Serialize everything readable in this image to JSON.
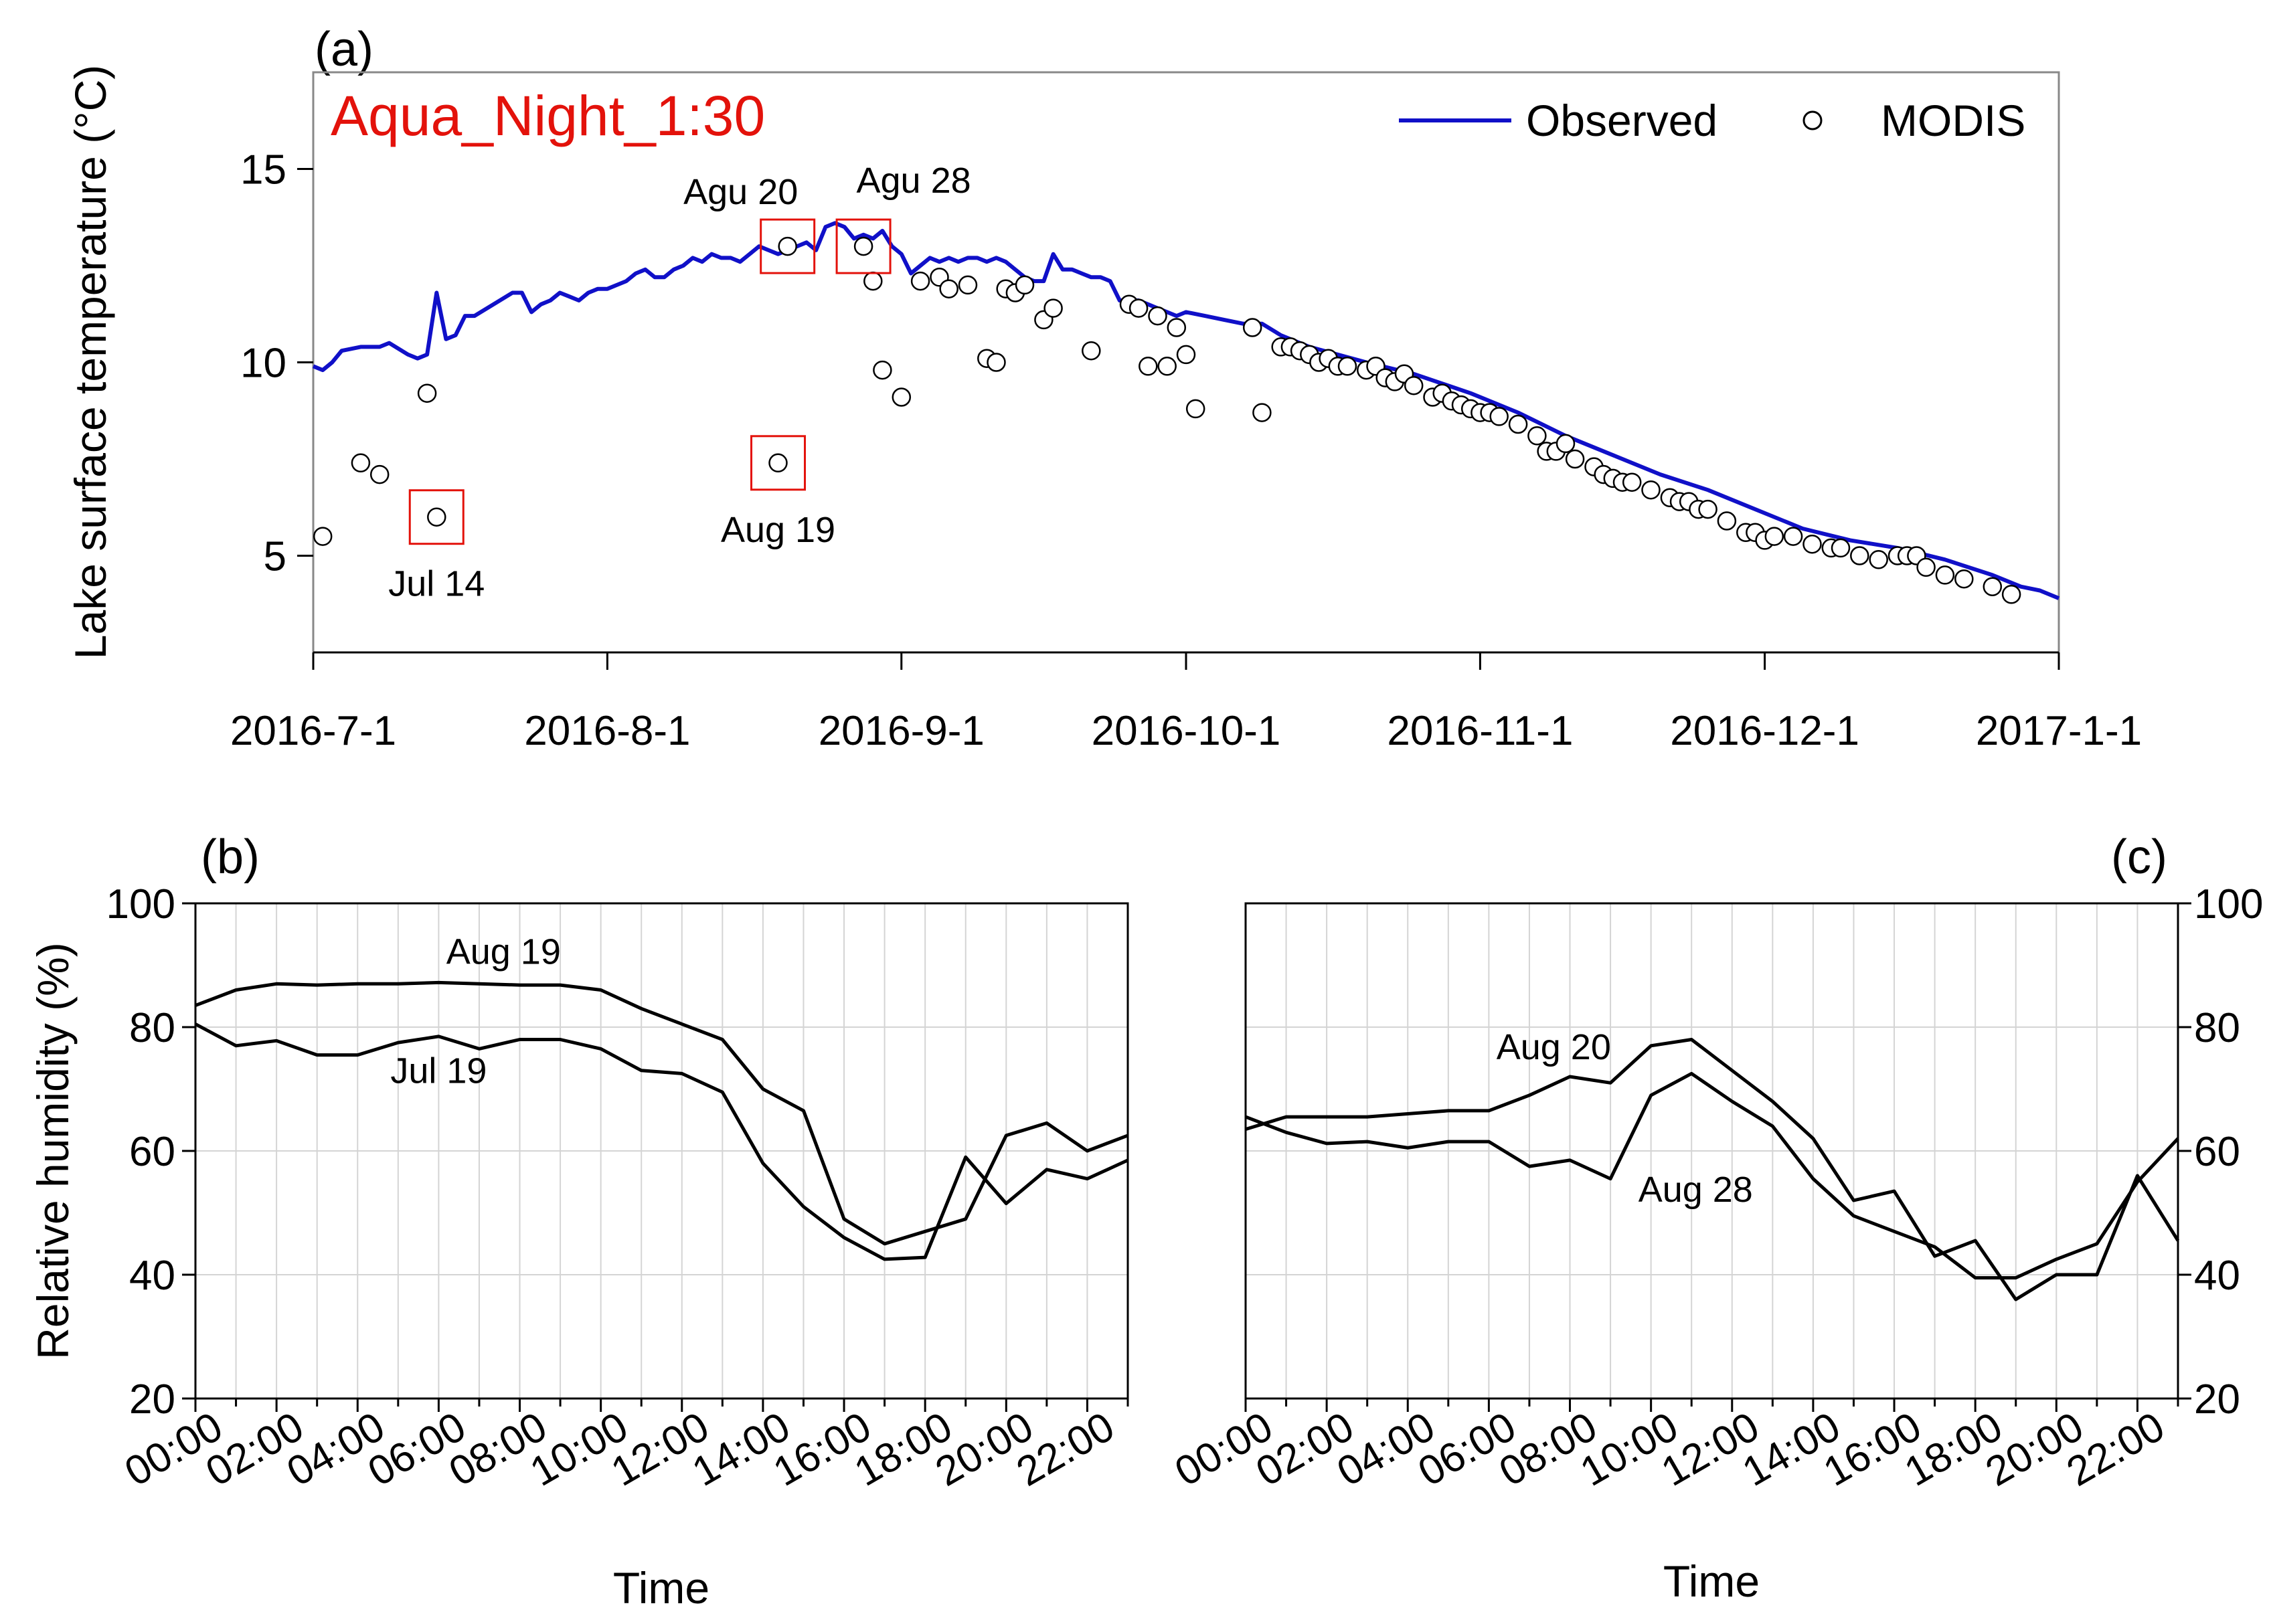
{
  "chart_data": [
    {
      "panel": "(a)",
      "type": "line+scatter",
      "title": "Aqua_Night_1:30",
      "title_color": "#e3120b",
      "xlabel": "",
      "ylabel": "Lake surface temperature (°C)",
      "xticks": [
        "2016-7-1",
        "2016-8-1",
        "2016-9-1",
        "2016-10-1",
        "2016-11-1",
        "2016-12-1",
        "2017-1-1"
      ],
      "xlim": [
        "2016-07-01",
        "2017-01-01"
      ],
      "ylim": [
        2.5,
        17.5
      ],
      "yticks": [
        5,
        10,
        15
      ],
      "legend": {
        "position": "top-right",
        "observed": "Observed",
        "modis": "MODIS"
      },
      "series_colors": {
        "observed": "#1010c8",
        "modis": "#000000"
      },
      "observed": [
        [
          "2016-07-01",
          9.9
        ],
        [
          "2016-07-02",
          9.8
        ],
        [
          "2016-07-03",
          10.0
        ],
        [
          "2016-07-04",
          10.3
        ],
        [
          "2016-07-06",
          10.4
        ],
        [
          "2016-07-08",
          10.4
        ],
        [
          "2016-07-09",
          10.5
        ],
        [
          "2016-07-11",
          10.2
        ],
        [
          "2016-07-12",
          10.1
        ],
        [
          "2016-07-13",
          10.2
        ],
        [
          "2016-07-14",
          11.8
        ],
        [
          "2016-07-15",
          10.6
        ],
        [
          "2016-07-16",
          10.7
        ],
        [
          "2016-07-17",
          11.2
        ],
        [
          "2016-07-18",
          11.2
        ],
        [
          "2016-07-20",
          11.5
        ],
        [
          "2016-07-22",
          11.8
        ],
        [
          "2016-07-23",
          11.8
        ],
        [
          "2016-07-24",
          11.3
        ],
        [
          "2016-07-25",
          11.5
        ],
        [
          "2016-07-26",
          11.6
        ],
        [
          "2016-07-27",
          11.8
        ],
        [
          "2016-07-28",
          11.7
        ],
        [
          "2016-07-29",
          11.6
        ],
        [
          "2016-07-30",
          11.8
        ],
        [
          "2016-07-31",
          11.9
        ],
        [
          "2016-08-01",
          11.9
        ],
        [
          "2016-08-02",
          12.0
        ],
        [
          "2016-08-03",
          12.1
        ],
        [
          "2016-08-04",
          12.3
        ],
        [
          "2016-08-05",
          12.4
        ],
        [
          "2016-08-06",
          12.2
        ],
        [
          "2016-08-07",
          12.2
        ],
        [
          "2016-08-08",
          12.4
        ],
        [
          "2016-08-09",
          12.5
        ],
        [
          "2016-08-10",
          12.7
        ],
        [
          "2016-08-11",
          12.6
        ],
        [
          "2016-08-12",
          12.8
        ],
        [
          "2016-08-13",
          12.7
        ],
        [
          "2016-08-14",
          12.7
        ],
        [
          "2016-08-15",
          12.6
        ],
        [
          "2016-08-16",
          12.8
        ],
        [
          "2016-08-17",
          13.0
        ],
        [
          "2016-08-18",
          12.9
        ],
        [
          "2016-08-19",
          12.8
        ],
        [
          "2016-08-20",
          12.9
        ],
        [
          "2016-08-21",
          13.0
        ],
        [
          "2016-08-22",
          13.1
        ],
        [
          "2016-08-23",
          12.9
        ],
        [
          "2016-08-24",
          13.5
        ],
        [
          "2016-08-25",
          13.6
        ],
        [
          "2016-08-26",
          13.5
        ],
        [
          "2016-08-27",
          13.2
        ],
        [
          "2016-08-28",
          13.3
        ],
        [
          "2016-08-29",
          13.2
        ],
        [
          "2016-08-30",
          13.4
        ],
        [
          "2016-08-31",
          13.0
        ],
        [
          "2016-09-01",
          12.8
        ],
        [
          "2016-09-02",
          12.3
        ],
        [
          "2016-09-03",
          12.5
        ],
        [
          "2016-09-04",
          12.7
        ],
        [
          "2016-09-05",
          12.6
        ],
        [
          "2016-09-06",
          12.7
        ],
        [
          "2016-09-07",
          12.6
        ],
        [
          "2016-09-08",
          12.7
        ],
        [
          "2016-09-09",
          12.7
        ],
        [
          "2016-09-10",
          12.6
        ],
        [
          "2016-09-11",
          12.7
        ],
        [
          "2016-09-12",
          12.6
        ],
        [
          "2016-09-13",
          12.4
        ],
        [
          "2016-09-14",
          12.2
        ],
        [
          "2016-09-15",
          12.1
        ],
        [
          "2016-09-16",
          12.1
        ],
        [
          "2016-09-17",
          12.8
        ],
        [
          "2016-09-18",
          12.4
        ],
        [
          "2016-09-19",
          12.4
        ],
        [
          "2016-09-20",
          12.3
        ],
        [
          "2016-09-21",
          12.2
        ],
        [
          "2016-09-22",
          12.2
        ],
        [
          "2016-09-23",
          12.1
        ],
        [
          "2016-09-24",
          11.6
        ],
        [
          "2016-09-25",
          11.6
        ],
        [
          "2016-09-26",
          11.6
        ],
        [
          "2016-09-27",
          11.5
        ],
        [
          "2016-09-28",
          11.4
        ],
        [
          "2016-09-29",
          11.3
        ],
        [
          "2016-09-30",
          11.2
        ],
        [
          "2016-10-01",
          11.3
        ],
        [
          "2016-10-03",
          11.2
        ],
        [
          "2016-10-05",
          11.1
        ],
        [
          "2016-10-07",
          11.0
        ],
        [
          "2016-10-09",
          11.0
        ],
        [
          "2016-10-11",
          10.7
        ],
        [
          "2016-10-14",
          10.4
        ],
        [
          "2016-10-20",
          10.0
        ],
        [
          "2016-10-25",
          9.7
        ],
        [
          "2016-10-31",
          9.2
        ],
        [
          "2016-11-05",
          8.7
        ],
        [
          "2016-11-10",
          8.1
        ],
        [
          "2016-11-15",
          7.6
        ],
        [
          "2016-11-20",
          7.1
        ],
        [
          "2016-11-25",
          6.7
        ],
        [
          "2016-12-01",
          6.1
        ],
        [
          "2016-12-05",
          5.7
        ],
        [
          "2016-12-10",
          5.4
        ],
        [
          "2016-12-15",
          5.2
        ],
        [
          "2016-12-20",
          4.9
        ],
        [
          "2016-12-25",
          4.5
        ],
        [
          "2016-12-28",
          4.2
        ],
        [
          "2016-12-30",
          4.1
        ],
        [
          "2017-01-01",
          3.9
        ]
      ],
      "modis": [
        [
          "2016-07-02",
          5.5
        ],
        [
          "2016-07-06",
          7.4
        ],
        [
          "2016-07-08",
          7.1
        ],
        [
          "2016-07-13",
          9.2
        ],
        [
          "2016-07-14",
          6.0
        ],
        [
          "2016-08-19",
          7.4
        ],
        [
          "2016-08-20",
          13.0
        ],
        [
          "2016-08-28",
          13.0
        ],
        [
          "2016-08-29",
          12.1
        ],
        [
          "2016-08-30",
          9.8
        ],
        [
          "2016-09-01",
          9.1
        ],
        [
          "2016-09-03",
          12.1
        ],
        [
          "2016-09-05",
          12.2
        ],
        [
          "2016-09-06",
          11.9
        ],
        [
          "2016-09-08",
          12.0
        ],
        [
          "2016-09-10",
          10.1
        ],
        [
          "2016-09-11",
          10.0
        ],
        [
          "2016-09-12",
          11.9
        ],
        [
          "2016-09-13",
          11.8
        ],
        [
          "2016-09-14",
          12.0
        ],
        [
          "2016-09-16",
          11.1
        ],
        [
          "2016-09-17",
          11.4
        ],
        [
          "2016-09-21",
          10.3
        ],
        [
          "2016-09-25",
          11.5
        ],
        [
          "2016-09-26",
          11.4
        ],
        [
          "2016-09-27",
          9.9
        ],
        [
          "2016-09-28",
          11.2
        ],
        [
          "2016-09-29",
          9.9
        ],
        [
          "2016-09-30",
          10.9
        ],
        [
          "2016-10-01",
          10.2
        ],
        [
          "2016-10-02",
          8.8
        ],
        [
          "2016-10-08",
          10.9
        ],
        [
          "2016-10-09",
          8.7
        ],
        [
          "2016-10-11",
          10.4
        ],
        [
          "2016-10-12",
          10.4
        ],
        [
          "2016-10-13",
          10.3
        ],
        [
          "2016-10-14",
          10.2
        ],
        [
          "2016-10-15",
          10.0
        ],
        [
          "2016-10-16",
          10.1
        ],
        [
          "2016-10-17",
          9.9
        ],
        [
          "2016-10-18",
          9.9
        ],
        [
          "2016-10-20",
          9.8
        ],
        [
          "2016-10-21",
          9.9
        ],
        [
          "2016-10-22",
          9.6
        ],
        [
          "2016-10-23",
          9.5
        ],
        [
          "2016-10-24",
          9.7
        ],
        [
          "2016-10-25",
          9.4
        ],
        [
          "2016-10-27",
          9.1
        ],
        [
          "2016-10-28",
          9.2
        ],
        [
          "2016-10-29",
          9.0
        ],
        [
          "2016-10-30",
          8.9
        ],
        [
          "2016-10-31",
          8.8
        ],
        [
          "2016-11-01",
          8.7
        ],
        [
          "2016-11-02",
          8.7
        ],
        [
          "2016-11-03",
          8.6
        ],
        [
          "2016-11-05",
          8.4
        ],
        [
          "2016-11-07",
          8.1
        ],
        [
          "2016-11-08",
          7.7
        ],
        [
          "2016-11-09",
          7.7
        ],
        [
          "2016-11-10",
          7.9
        ],
        [
          "2016-11-11",
          7.5
        ],
        [
          "2016-11-13",
          7.3
        ],
        [
          "2016-11-14",
          7.1
        ],
        [
          "2016-11-15",
          7.0
        ],
        [
          "2016-11-16",
          6.9
        ],
        [
          "2016-11-17",
          6.9
        ],
        [
          "2016-11-19",
          6.7
        ],
        [
          "2016-11-21",
          6.5
        ],
        [
          "2016-11-22",
          6.4
        ],
        [
          "2016-11-23",
          6.4
        ],
        [
          "2016-11-24",
          6.2
        ],
        [
          "2016-11-25",
          6.2
        ],
        [
          "2016-11-27",
          5.9
        ],
        [
          "2016-11-29",
          5.6
        ],
        [
          "2016-11-30",
          5.6
        ],
        [
          "2016-12-01",
          5.4
        ],
        [
          "2016-12-02",
          5.5
        ],
        [
          "2016-12-04",
          5.5
        ],
        [
          "2016-12-06",
          5.3
        ],
        [
          "2016-12-08",
          5.2
        ],
        [
          "2016-12-09",
          5.2
        ],
        [
          "2016-12-11",
          5.0
        ],
        [
          "2016-12-13",
          4.9
        ],
        [
          "2016-12-15",
          5.0
        ],
        [
          "2016-12-16",
          5.0
        ],
        [
          "2016-12-17",
          5.0
        ],
        [
          "2016-12-18",
          4.7
        ],
        [
          "2016-12-20",
          4.5
        ],
        [
          "2016-12-22",
          4.4
        ],
        [
          "2016-12-25",
          4.2
        ],
        [
          "2016-12-27",
          4.0
        ]
      ],
      "annotations": [
        {
          "text": "Jul 14",
          "date": "2016-07-14",
          "value": 6.0,
          "label_pos": "below"
        },
        {
          "text": "Aug 19",
          "date": "2016-08-19",
          "value": 7.4,
          "label_pos": "below"
        },
        {
          "text": "Agu 20",
          "date": "2016-08-20",
          "value": 13.0,
          "label_pos": "above-left"
        },
        {
          "text": "Agu 28",
          "date": "2016-08-28",
          "value": 13.0,
          "label_pos": "above-right"
        }
      ],
      "annotation_box_color": "#e3120b"
    },
    {
      "panel": "(b)",
      "type": "line",
      "xlabel": "Time",
      "ylabel": "Relative humidity (%)",
      "xticks": [
        "00:00",
        "02:00",
        "04:00",
        "06:00",
        "08:00",
        "10:00",
        "12:00",
        "14:00",
        "16:00",
        "18:00",
        "20:00",
        "22:00"
      ],
      "xlim": [
        0,
        23
      ],
      "ylim": [
        20,
        100
      ],
      "yticks": [
        20,
        40,
        60,
        80,
        100
      ],
      "y_axis_side": "left",
      "grid": true,
      "series": [
        {
          "name": "Aug 19",
          "hours": [
            0,
            1,
            2,
            3,
            4,
            5,
            6,
            7,
            8,
            9,
            10,
            11,
            12,
            13,
            14,
            15,
            16,
            17,
            18,
            19,
            20,
            21,
            22,
            23
          ],
          "values": [
            83.5,
            86,
            87,
            86.8,
            87,
            87,
            87.2,
            87,
            86.8,
            86.8,
            86,
            83,
            80.5,
            78,
            70,
            66.5,
            49,
            45,
            47,
            49,
            62.5,
            64.5,
            60,
            62.5
          ]
        },
        {
          "name": "Jul 19",
          "hours": [
            0,
            1,
            2,
            3,
            4,
            5,
            6,
            7,
            8,
            9,
            10,
            11,
            12,
            13,
            14,
            15,
            16,
            17,
            18,
            19,
            20,
            21,
            22,
            23
          ],
          "values": [
            80.5,
            77,
            77.8,
            75.5,
            75.5,
            77.5,
            78.5,
            76.5,
            78,
            78,
            76.5,
            73,
            72.5,
            69.5,
            58,
            51,
            46,
            42.5,
            42.8,
            59,
            51.5,
            57,
            55.5,
            58.5
          ]
        }
      ]
    },
    {
      "panel": "(c)",
      "type": "line",
      "xlabel": "Time",
      "ylabel": "",
      "xticks": [
        "00:00",
        "02:00",
        "04:00",
        "06:00",
        "08:00",
        "10:00",
        "12:00",
        "14:00",
        "16:00",
        "18:00",
        "20:00",
        "22:00"
      ],
      "xlim": [
        0,
        23
      ],
      "ylim": [
        20,
        100
      ],
      "yticks": [
        20,
        40,
        60,
        80,
        100
      ],
      "y_axis_side": "right",
      "grid": true,
      "series": [
        {
          "name": "Aug 20",
          "hours": [
            0,
            1,
            2,
            3,
            4,
            5,
            6,
            7,
            8,
            9,
            10,
            11,
            12,
            13,
            14,
            15,
            16,
            17,
            18,
            19,
            20,
            21,
            22,
            23
          ],
          "values": [
            63.5,
            65.5,
            65.5,
            65.5,
            66,
            66.5,
            66.5,
            69,
            72,
            71,
            77,
            78,
            73,
            68,
            62,
            52,
            53.5,
            43,
            45.5,
            36,
            40,
            40,
            56,
            45.5
          ]
        },
        {
          "name": "Aug 28",
          "hours": [
            0,
            1,
            2,
            3,
            4,
            5,
            6,
            7,
            8,
            9,
            10,
            11,
            12,
            13,
            14,
            15,
            16,
            17,
            18,
            19,
            20,
            21,
            22,
            23
          ],
          "values": [
            65.5,
            63,
            61.2,
            61.5,
            60.5,
            61.5,
            61.5,
            57.5,
            58.5,
            55.5,
            69,
            72.5,
            68,
            64,
            55.5,
            49.5,
            47,
            44.5,
            39.5,
            39.5,
            42.5,
            45,
            55,
            62
          ]
        }
      ]
    }
  ]
}
